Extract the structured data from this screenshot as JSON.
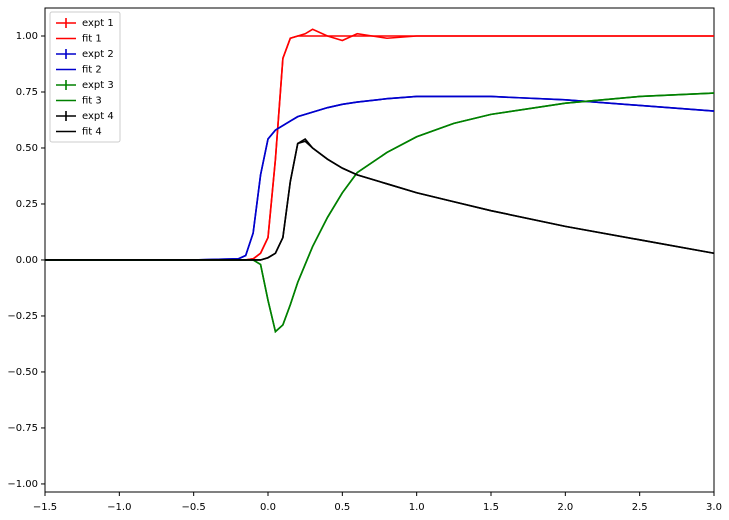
{
  "chart_data": {
    "type": "line",
    "x": [
      -1.5,
      -1.0,
      -0.5,
      -0.2,
      -0.15,
      -0.1,
      -0.05,
      0,
      0.05,
      0.1,
      0.15,
      0.2,
      0.25,
      0.3,
      0.4,
      0.5,
      0.6,
      0.8,
      1.0,
      1.25,
      1.5,
      2.0,
      2.5,
      3.0
    ],
    "series": [
      {
        "name": "expt 1",
        "color": "#ff0000",
        "values": [
          0,
          0,
          0,
          0,
          0,
          0.005,
          0.03,
          0.1,
          0.45,
          0.9,
          0.99,
          1.0,
          1.01,
          1.03,
          1.0,
          0.98,
          1.01,
          0.99,
          1.0,
          1.0,
          1.0,
          1.0,
          1.0,
          1.0
        ]
      },
      {
        "name": "fit 1",
        "color": "#ff0000",
        "values": [
          0,
          0,
          0,
          0,
          0,
          0.005,
          0.03,
          0.1,
          0.45,
          0.9,
          0.99,
          1.0,
          1.0,
          1.0,
          1.0,
          1.0,
          1.0,
          1.0,
          1.0,
          1.0,
          1.0,
          1.0,
          1.0,
          1.0
        ]
      },
      {
        "name": "expt 2",
        "color": "#0000cc",
        "values": [
          0,
          0,
          0,
          0.005,
          0.02,
          0.12,
          0.38,
          0.54,
          0.58,
          0.6,
          0.62,
          0.64,
          0.65,
          0.66,
          0.68,
          0.695,
          0.705,
          0.72,
          0.73,
          0.73,
          0.73,
          0.715,
          0.69,
          0.665
        ]
      },
      {
        "name": "fit 2",
        "color": "#0000cc",
        "values": [
          0,
          0,
          0,
          0.005,
          0.02,
          0.12,
          0.38,
          0.54,
          0.58,
          0.6,
          0.62,
          0.64,
          0.65,
          0.66,
          0.68,
          0.695,
          0.705,
          0.72,
          0.73,
          0.73,
          0.73,
          0.715,
          0.69,
          0.665
        ]
      },
      {
        "name": "expt 3",
        "color": "#008000",
        "values": [
          0,
          0,
          0,
          0,
          0,
          0,
          -0.02,
          -0.18,
          -0.32,
          -0.29,
          -0.2,
          -0.1,
          -0.02,
          0.06,
          0.19,
          0.3,
          0.39,
          0.48,
          0.55,
          0.61,
          0.65,
          0.7,
          0.73,
          0.745
        ]
      },
      {
        "name": "fit 3",
        "color": "#008000",
        "values": [
          0,
          0,
          0,
          0,
          0,
          0,
          -0.02,
          -0.18,
          -0.32,
          -0.29,
          -0.2,
          -0.1,
          -0.02,
          0.06,
          0.19,
          0.3,
          0.39,
          0.48,
          0.55,
          0.61,
          0.65,
          0.7,
          0.73,
          0.745
        ]
      },
      {
        "name": "expt 4",
        "color": "#000000",
        "values": [
          0,
          0,
          0,
          0,
          0,
          0,
          0,
          0.01,
          0.03,
          0.1,
          0.35,
          0.52,
          0.54,
          0.5,
          0.45,
          0.41,
          0.38,
          0.34,
          0.3,
          0.26,
          0.22,
          0.15,
          0.09,
          0.03
        ]
      },
      {
        "name": "fit 4",
        "color": "#000000",
        "values": [
          0,
          0,
          0,
          0,
          0,
          0,
          0,
          0.01,
          0.03,
          0.1,
          0.35,
          0.52,
          0.53,
          0.5,
          0.45,
          0.41,
          0.38,
          0.34,
          0.3,
          0.26,
          0.22,
          0.15,
          0.09,
          0.03
        ]
      }
    ],
    "xlim": [
      -1.5,
      3.0
    ],
    "ylim": [
      -1.036,
      1.125
    ],
    "xticks": [
      {
        "value": -1.5,
        "label": "−1.5"
      },
      {
        "value": -1.0,
        "label": "−1.0"
      },
      {
        "value": -0.5,
        "label": "−0.5"
      },
      {
        "value": 0,
        "label": "0.0"
      },
      {
        "value": 0.5,
        "label": "0.5"
      },
      {
        "value": 1.0,
        "label": "1.0"
      },
      {
        "value": 1.5,
        "label": "1.5"
      },
      {
        "value": 2.0,
        "label": "2.0"
      },
      {
        "value": 2.5,
        "label": "2.5"
      },
      {
        "value": 3.0,
        "label": "3.0"
      }
    ],
    "yticks": [
      {
        "value": -1.0,
        "label": "−1.00"
      },
      {
        "value": -0.75,
        "label": "−0.75"
      },
      {
        "value": -0.5,
        "label": "−0.50"
      },
      {
        "value": -0.25,
        "label": "−0.25"
      },
      {
        "value": 0,
        "label": "0.00"
      },
      0.25,
      {
        "value": 0.5,
        "label": "0.50"
      },
      0.75,
      {
        "value": 1.0,
        "label": "1.00"
      }
    ],
    "legend": "upper left"
  }
}
